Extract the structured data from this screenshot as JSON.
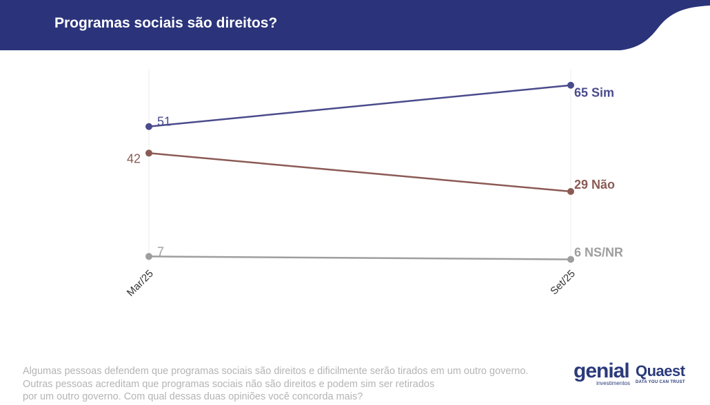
{
  "header": {
    "title": "Programas sociais são direitos?",
    "color": "#2b347a"
  },
  "chart_data": {
    "type": "line",
    "title": "Programas sociais são direitos?",
    "categories": [
      "Mar/25",
      "Set/25"
    ],
    "series": [
      {
        "name": "Sim",
        "values": [
          51,
          65
        ],
        "color": "#4a4b8c",
        "start_label": "51",
        "end_label": "65 Sim"
      },
      {
        "name": "Não",
        "values": [
          42,
          29
        ],
        "color": "#8b5a55",
        "start_label": "42",
        "end_label": "29 Não"
      },
      {
        "name": "NS/NR",
        "values": [
          7,
          6
        ],
        "color": "#9e9e9e",
        "start_label": "7",
        "end_label": "6 NS/NR"
      }
    ],
    "ylim": [
      0,
      80
    ],
    "grid": false,
    "legend": "inline end labels"
  },
  "question": {
    "lines": [
      "Algumas pessoas defendem que programas sociais são direitos e dificilmente serão tirados em um outro governo.",
      "Outras pessoas acreditam que programas sociais não são direitos e podem sim ser retirados",
      "por um outro governo. Com qual dessas duas opiniões você concorda mais?"
    ]
  },
  "logos": {
    "genial": {
      "word": "genial",
      "sub": "investimentos"
    },
    "quaest": {
      "word": "Quaest",
      "tagline": "DATA YOU CAN TRUST"
    }
  }
}
